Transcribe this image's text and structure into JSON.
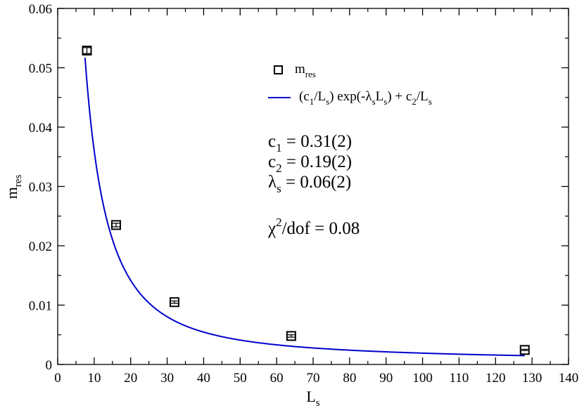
{
  "chart_data": {
    "type": "scatter",
    "xlabel": {
      "main": "L",
      "sub": "s"
    },
    "ylabel": {
      "main": "m",
      "sub": "res"
    },
    "xlim": [
      0,
      140
    ],
    "ylim": [
      0,
      0.06
    ],
    "xticks": [
      0,
      10,
      20,
      30,
      40,
      50,
      60,
      70,
      80,
      90,
      100,
      110,
      120,
      130,
      140
    ],
    "yticks": [
      0,
      0.01,
      0.02,
      0.03,
      0.04,
      0.05,
      0.06
    ],
    "ytick_labels": [
      "0",
      "0.01",
      "0.02",
      "0.03",
      "0.04",
      "0.05",
      "0.06"
    ],
    "grid": false,
    "legend_position": "top-right",
    "series": [
      {
        "name": "m_res",
        "kind": "scatter",
        "marker": "open-square",
        "color": "#000000",
        "x": [
          8,
          16,
          32,
          64,
          128
        ],
        "y": [
          0.0529,
          0.0235,
          0.0105,
          0.0048,
          0.00245
        ],
        "yerr": [
          0.0005,
          0.0003,
          0.0002,
          0.0002,
          0.0001
        ]
      },
      {
        "name": "(c1/Ls) exp(-λs Ls) + c2/Ls",
        "kind": "line",
        "color": "#0000cc",
        "params": {
          "c1": 0.31,
          "c2": 0.19,
          "lambda_s": 0.06
        },
        "x_range": [
          7.5,
          128
        ]
      }
    ],
    "legend": {
      "marker_entry": {
        "main": "m",
        "sub": "res"
      },
      "line_entry": {
        "p1": "(c",
        "s1": "1",
        "p2": "/L",
        "s2": "s",
        "p3": ") exp(-λ",
        "s3": "s",
        "p4": "L",
        "s4": "s",
        "p5": ") + c",
        "s5": "2",
        "p6": "/L",
        "s6": "s"
      }
    },
    "annotations": {
      "c1": {
        "main": "c",
        "sub": "1",
        "rest": " = 0.31(2)"
      },
      "c2": {
        "main": "c",
        "sub": "2",
        "rest": " = 0.19(2)"
      },
      "lambda": {
        "main": "λ",
        "sub": "s",
        "rest": " = 0.06(2)"
      },
      "chi": {
        "main": "χ",
        "sup": "2",
        "rest": "/dof = 0.08"
      }
    }
  }
}
